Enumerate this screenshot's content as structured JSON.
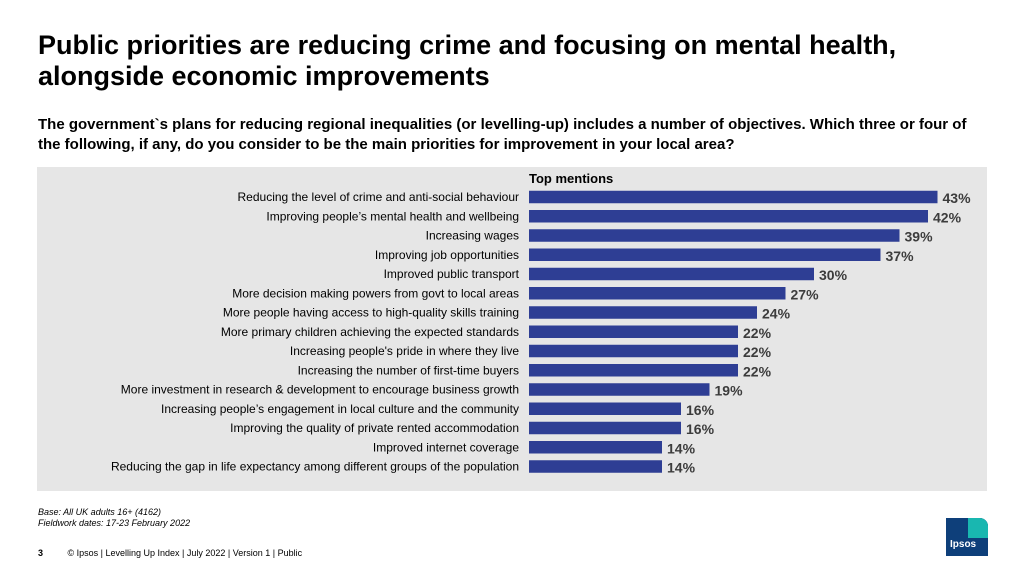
{
  "header": {
    "title": "Public priorities are reducing crime and focusing on mental health, alongside economic improvements",
    "subtitle": "The government`s plans for reducing regional inequalities (or levelling-up) includes a number of objectives. Which three or four of the following, if any, do you consider to be the main priorities for improvement in your local area?"
  },
  "chart_data": {
    "type": "bar",
    "orientation": "horizontal",
    "title": "Top mentions",
    "categories": [
      "Reducing the level of crime and anti-social behaviour",
      "Improving people’s mental health and wellbeing",
      "Increasing wages",
      "Improving job opportunities",
      "Improved public transport",
      "More decision making powers from govt to local areas",
      "More people having access to high-quality skills training",
      "More primary children achieving the expected standards",
      "Increasing people's pride in where they live",
      "Increasing the number of first-time buyers",
      "More investment in research & development to encourage business growth",
      "Increasing people’s engagement in local culture and the community",
      "Improving the quality of private rented accommodation",
      "Improved internet coverage",
      "Reducing the gap in life expectancy among different groups of the population"
    ],
    "values": [
      43,
      42,
      39,
      37,
      30,
      27,
      24,
      22,
      22,
      22,
      19,
      16,
      16,
      14,
      14
    ],
    "value_suffix": "%",
    "xlim": [
      0,
      50
    ],
    "grid": false,
    "legend": "none",
    "colors": {
      "bar": "#2e3e94",
      "label": "#3c3c3c",
      "panel": "#e6e6e6"
    }
  },
  "footnotes": {
    "base": "Base: All UK adults 16+ (4162)",
    "fieldwork": "Fieldwork dates: 17-23 February 2022"
  },
  "footer": {
    "page_number": "3",
    "text": "© Ipsos | Levelling Up Index | July 2022 | Version 1 | Public"
  },
  "logo": {
    "text": "Ipsos"
  }
}
